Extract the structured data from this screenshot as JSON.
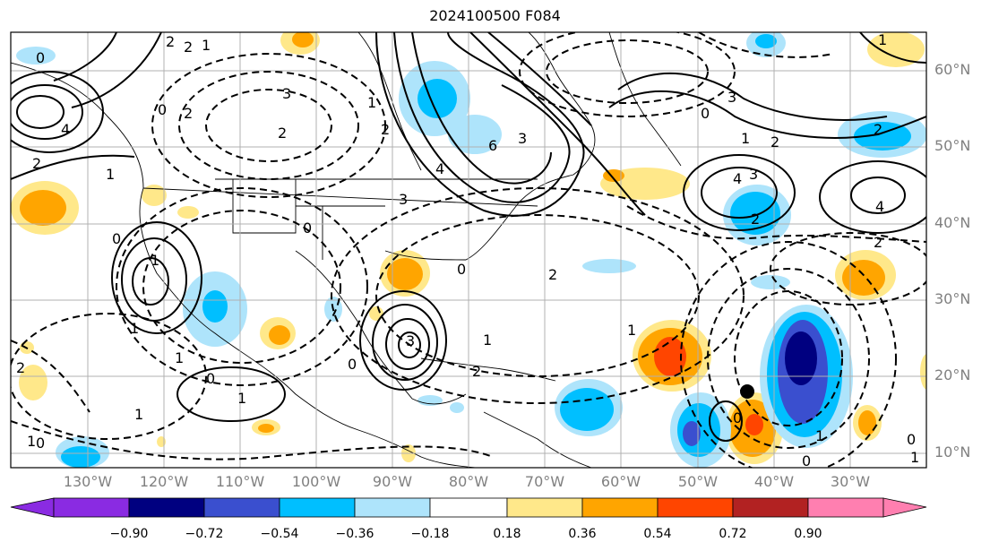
{
  "title": "2024100500 F084",
  "lat_labels": [
    "60°N",
    "50°N",
    "40°N",
    "30°N",
    "20°N",
    "10°N"
  ],
  "lon_labels": [
    "130°W",
    "120°W",
    "110°W",
    "100°W",
    "90°W",
    "80°W",
    "70°W",
    "60°W",
    "50°W",
    "40°W",
    "30°W"
  ],
  "colorbar": {
    "ticks": [
      "−0.90",
      "−0.72",
      "−0.54",
      "−0.36",
      "−0.18",
      "0.18",
      "0.36",
      "0.54",
      "0.72",
      "0.90"
    ],
    "colors": [
      "#8a2be2",
      "#000080",
      "#3a4fcf",
      "#00bfff",
      "#aee4fb",
      "#ffffff",
      "#ffe88a",
      "#ffa500",
      "#ff4500",
      "#b22222",
      "#ff7fb0"
    ]
  },
  "contour_labels": [
    {
      "text": "2"
    },
    {
      "text": "2"
    },
    {
      "text": "1"
    },
    {
      "text": "0"
    },
    {
      "text": "0"
    },
    {
      "text": "4"
    },
    {
      "text": "2"
    },
    {
      "text": "2"
    },
    {
      "text": "1"
    },
    {
      "text": "0"
    },
    {
      "text": "1"
    },
    {
      "text": "2"
    },
    {
      "text": "3"
    },
    {
      "text": "0"
    },
    {
      "text": "1"
    },
    {
      "text": "2"
    },
    {
      "text": "6"
    },
    {
      "text": "3"
    },
    {
      "text": "4"
    },
    {
      "text": "3"
    },
    {
      "text": "0"
    },
    {
      "text": "1"
    },
    {
      "text": "2"
    },
    {
      "text": "3"
    },
    {
      "text": "4"
    },
    {
      "text": "2"
    },
    {
      "text": "3"
    },
    {
      "text": "4"
    },
    {
      "text": "2"
    },
    {
      "text": "2"
    },
    {
      "text": "1"
    },
    {
      "text": "0"
    },
    {
      "text": "1"
    },
    {
      "text": "1"
    },
    {
      "text": "2"
    },
    {
      "text": "3"
    },
    {
      "text": "0"
    },
    {
      "text": "1"
    },
    {
      "text": "0"
    },
    {
      "text": "1"
    },
    {
      "text": "1"
    },
    {
      "text": "0"
    },
    {
      "text": "0"
    },
    {
      "text": "1"
    },
    {
      "text": "2"
    },
    {
      "text": "0"
    },
    {
      "text": "0"
    },
    {
      "text": "1"
    },
    {
      "text": "1"
    },
    {
      "text": "2"
    },
    {
      "text": "1"
    }
  ],
  "marker": {
    "description": "black dot storm center"
  }
}
